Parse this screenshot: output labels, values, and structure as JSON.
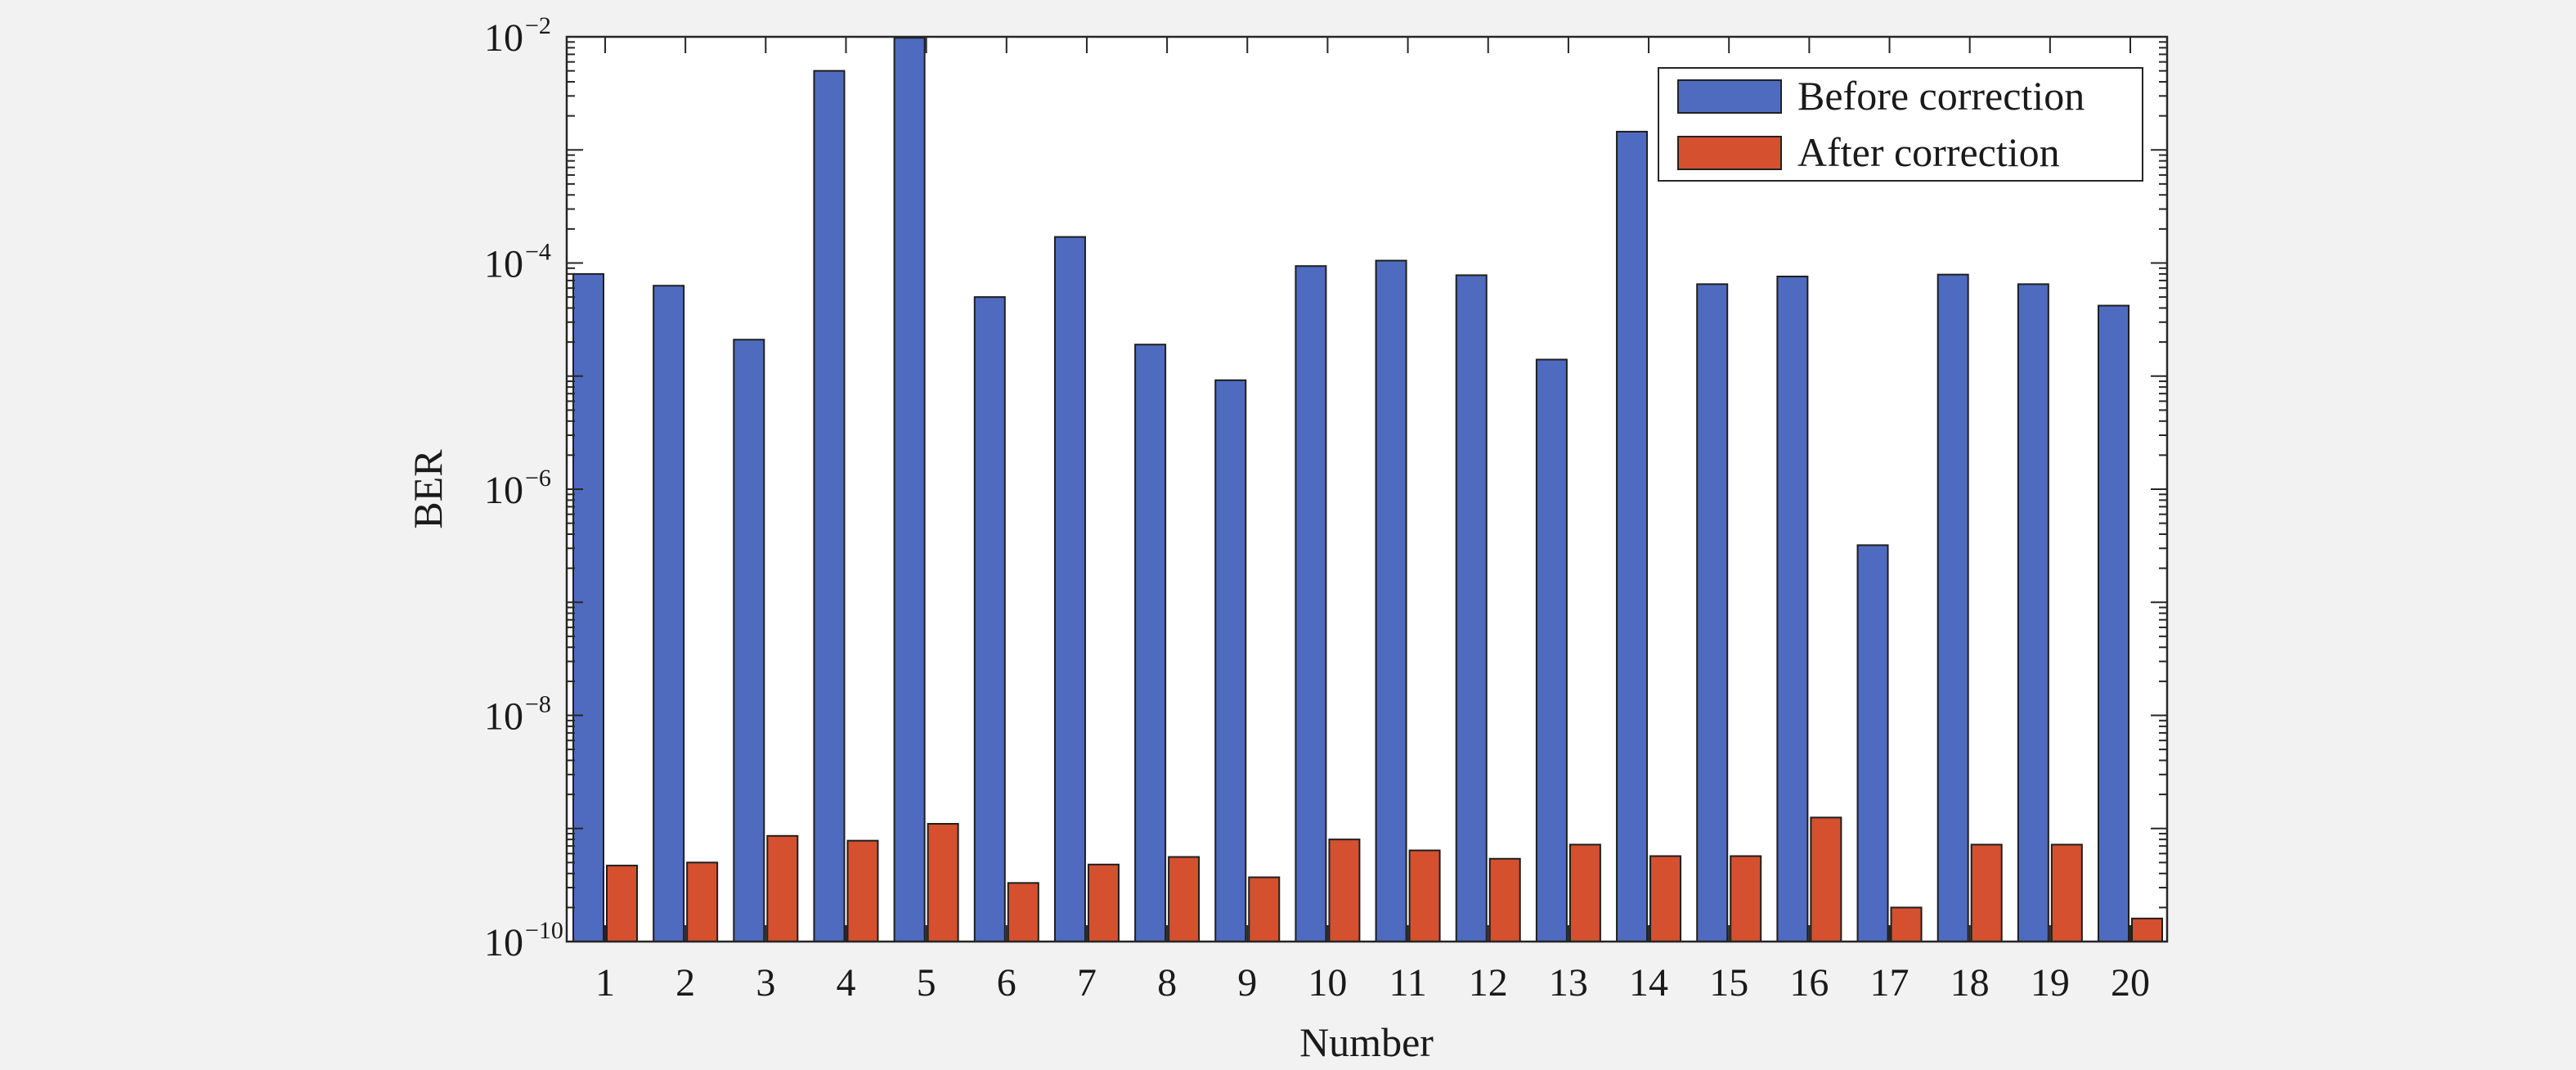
{
  "chart_data": {
    "type": "bar",
    "xlabel": "Number",
    "ylabel": "BER",
    "yscale": "log",
    "ylim": [
      1e-10,
      0.01
    ],
    "y_ticks": [
      {
        "base": "10",
        "exp": "−10"
      },
      {
        "base": "10",
        "exp": "−8"
      },
      {
        "base": "10",
        "exp": "−6"
      },
      {
        "base": "10",
        "exp": "−4"
      },
      {
        "base": "10",
        "exp": "−2"
      }
    ],
    "categories": [
      "1",
      "2",
      "3",
      "4",
      "5",
      "6",
      "7",
      "8",
      "9",
      "10",
      "11",
      "12",
      "13",
      "14",
      "15",
      "16",
      "17",
      "18",
      "19",
      "20"
    ],
    "series": [
      {
        "name": "Before correction",
        "color": "#4f6bbf",
        "values": [
          8e-05,
          6.3e-05,
          2.1e-05,
          0.005,
          0.0098,
          5e-05,
          0.00017,
          1.9e-05,
          9.2e-06,
          9.4e-05,
          0.000105,
          7.8e-05,
          1.4e-05,
          0.00145,
          6.5e-05,
          7.6e-05,
          3.2e-07,
          7.9e-05,
          6.5e-05,
          4.2e-05
        ]
      },
      {
        "name": "After correction",
        "color": "#d4502f",
        "values": [
          4.7e-10,
          5e-10,
          8.6e-10,
          7.8e-10,
          1.1e-09,
          3.3e-10,
          4.8e-10,
          5.6e-10,
          3.7e-10,
          8e-10,
          6.4e-10,
          5.4e-10,
          7.2e-10,
          5.7e-10,
          5.7e-10,
          1.25e-09,
          2e-10,
          7.2e-10,
          7.2e-10,
          1.6e-10
        ]
      }
    ],
    "legend_position": "top-right",
    "grid": false
  }
}
